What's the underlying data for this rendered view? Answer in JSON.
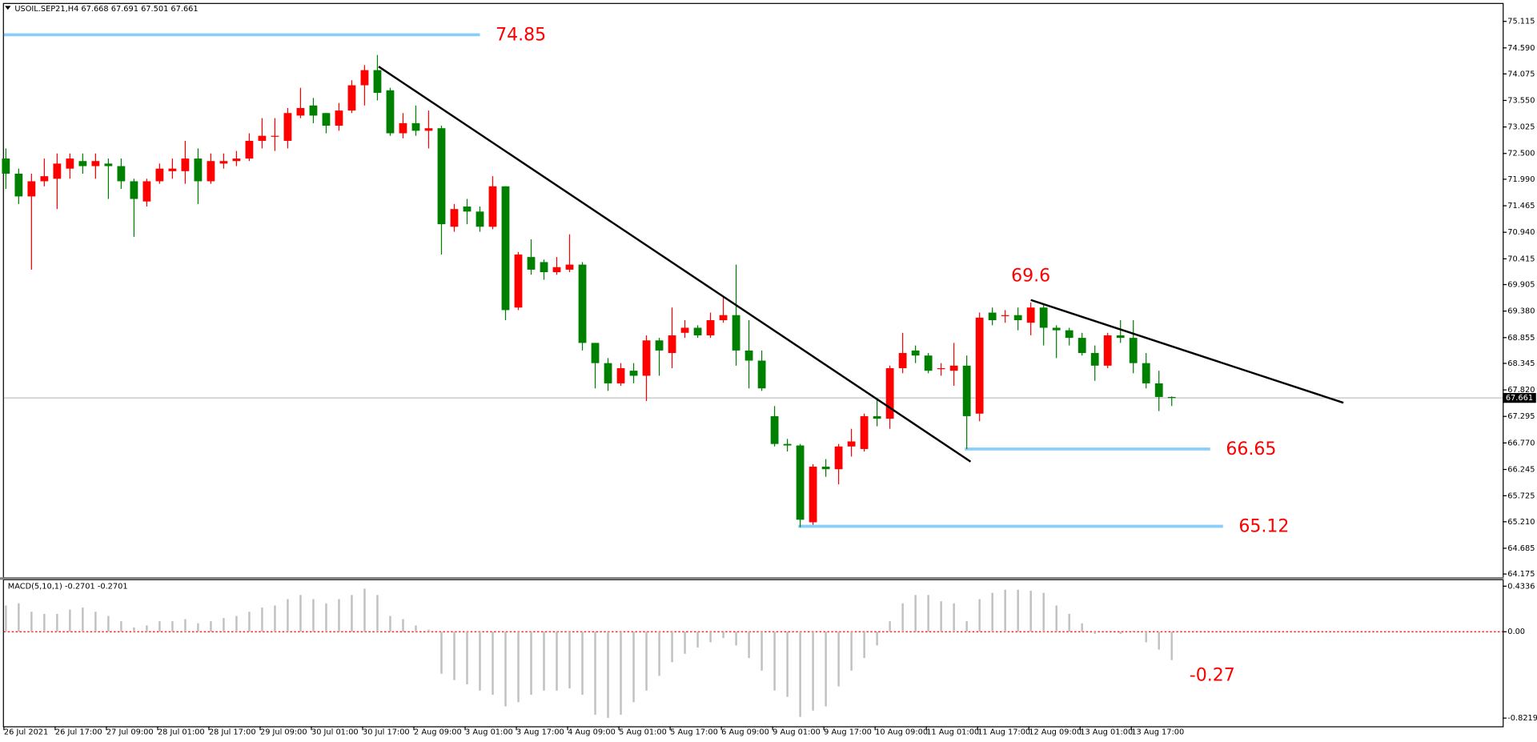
{
  "chart_data": [
    {
      "type": "candlestick",
      "title": "USOIL.SEP21,H4 67.668 67.691 67.501 67.661",
      "categories": [
        "26 Jul 2021",
        null,
        null,
        null,
        "26 Jul 17:00",
        null,
        null,
        null,
        "27 Jul 09:00",
        null,
        null,
        null,
        "28 Jul 01:00",
        null,
        null,
        null,
        "28 Jul 17:00",
        null,
        null,
        null,
        "29 Jul 09:00",
        null,
        null,
        null,
        "30 Jul 01:00",
        null,
        null,
        null,
        "30 Jul 17:00",
        null,
        null,
        null,
        "2 Aug 09:00",
        null,
        null,
        null,
        "3 Aug 01:00",
        null,
        null,
        null,
        "3 Aug 17:00",
        null,
        null,
        null,
        "4 Aug 09:00",
        null,
        null,
        null,
        "5 Aug 01:00",
        null,
        null,
        null,
        "5 Aug 17:00",
        null,
        null,
        null,
        "6 Aug 09:00",
        null,
        null,
        null,
        "9 Aug 01:00",
        null,
        null,
        null,
        "9 Aug 17:00",
        null,
        null,
        null,
        "10 Aug 09:00",
        null,
        null,
        null,
        "11 Aug 01:00",
        null,
        null,
        null,
        "11 Aug 17:00",
        null,
        null,
        null,
        "12 Aug 09:00",
        null,
        null,
        null,
        "13 Aug 01:00",
        null,
        null,
        null,
        "13 Aug 17:00",
        null,
        null,
        null
      ],
      "open": [
        72.4,
        72.1,
        71.65,
        71.95,
        72.0,
        72.2,
        72.35,
        72.25,
        72.3,
        72.25,
        71.95,
        71.55,
        71.95,
        72.15,
        72.15,
        72.4,
        71.95,
        72.3,
        72.35,
        72.4,
        72.75,
        72.85,
        72.75,
        73.25,
        73.45,
        73.3,
        73.05,
        73.35,
        73.85,
        74.15,
        73.75,
        72.9,
        73.1,
        72.95,
        73.0,
        71.05,
        71.45,
        71.35,
        71.05,
        71.85,
        69.45,
        70.45,
        70.35,
        70.15,
        70.2,
        70.3,
        68.75,
        68.35,
        67.95,
        68.2,
        68.1,
        68.8,
        68.55,
        68.95,
        69.05,
        68.9,
        69.2,
        69.3,
        68.6,
        68.4,
        67.3,
        66.75,
        66.72,
        65.2,
        66.3,
        66.25,
        66.7,
        66.65,
        67.3,
        67.25,
        68.25,
        68.6,
        68.5,
        68.25,
        68.2,
        68.3,
        67.35,
        69.35,
        69.3,
        69.3,
        69.15,
        69.45,
        69.05,
        69.0,
        68.85,
        68.55,
        68.3,
        68.9,
        68.85,
        68.35,
        67.95,
        67.68
      ],
      "high": [
        72.6,
        72.2,
        72.1,
        72.4,
        72.5,
        72.5,
        72.5,
        72.5,
        72.4,
        72.4,
        72.0,
        72.0,
        72.3,
        72.4,
        72.75,
        72.6,
        72.5,
        72.5,
        72.55,
        72.9,
        73.2,
        73.2,
        73.4,
        73.8,
        73.6,
        73.3,
        73.5,
        73.95,
        74.25,
        74.45,
        73.8,
        73.3,
        73.45,
        73.35,
        73.05,
        71.5,
        71.6,
        71.45,
        72.05,
        71.85,
        70.55,
        70.8,
        70.4,
        70.45,
        70.9,
        70.35,
        68.75,
        68.45,
        68.35,
        68.35,
        68.9,
        68.85,
        69.45,
        69.2,
        69.1,
        69.35,
        69.65,
        70.3,
        69.2,
        68.6,
        67.5,
        66.85,
        66.75,
        66.35,
        66.45,
        66.75,
        67.05,
        67.35,
        67.65,
        68.3,
        68.95,
        68.7,
        68.55,
        68.35,
        68.75,
        68.5,
        69.35,
        69.45,
        69.4,
        69.45,
        69.55,
        69.5,
        69.1,
        69.05,
        68.95,
        68.7,
        68.95,
        69.2,
        69.2,
        68.55,
        68.2,
        67.691
      ],
      "low": [
        71.8,
        71.5,
        70.2,
        71.85,
        71.4,
        72.0,
        72.1,
        72.0,
        71.6,
        71.8,
        70.85,
        71.45,
        71.9,
        72.0,
        71.9,
        71.5,
        71.9,
        72.2,
        72.25,
        72.35,
        72.6,
        72.55,
        72.6,
        73.2,
        73.1,
        72.9,
        72.95,
        73.3,
        73.45,
        73.55,
        72.85,
        72.8,
        72.85,
        72.6,
        70.5,
        70.95,
        71.1,
        70.95,
        71.0,
        69.2,
        69.4,
        70.1,
        70.0,
        70.1,
        70.15,
        68.6,
        67.85,
        67.8,
        67.9,
        67.95,
        67.6,
        68.1,
        68.25,
        68.85,
        68.85,
        68.85,
        69.15,
        68.3,
        67.85,
        67.8,
        66.7,
        66.6,
        65.1,
        65.15,
        66.1,
        65.95,
        66.5,
        66.6,
        67.1,
        67.05,
        68.15,
        68.35,
        68.15,
        68.1,
        67.9,
        66.65,
        67.2,
        69.1,
        69.15,
        69.0,
        68.9,
        68.7,
        68.45,
        68.7,
        68.5,
        68.0,
        68.25,
        68.75,
        68.15,
        67.85,
        67.4,
        67.501
      ],
      "close": [
        72.1,
        71.65,
        71.95,
        72.05,
        72.3,
        72.4,
        72.25,
        72.35,
        72.25,
        71.95,
        71.6,
        71.95,
        72.2,
        72.2,
        72.4,
        71.95,
        72.35,
        72.35,
        72.4,
        72.75,
        72.85,
        72.85,
        73.3,
        73.4,
        73.25,
        73.05,
        73.35,
        73.85,
        74.15,
        73.7,
        72.9,
        73.1,
        72.95,
        73.0,
        71.1,
        71.4,
        71.35,
        71.05,
        71.85,
        69.4,
        70.5,
        70.2,
        70.15,
        70.25,
        70.3,
        68.75,
        68.35,
        67.95,
        68.25,
        68.1,
        68.8,
        68.6,
        68.9,
        69.05,
        68.9,
        69.2,
        69.3,
        68.6,
        68.4,
        67.85,
        66.75,
        66.72,
        65.25,
        66.3,
        66.25,
        66.7,
        66.8,
        67.3,
        67.25,
        68.25,
        68.55,
        68.5,
        68.2,
        68.25,
        68.3,
        67.3,
        69.25,
        69.2,
        69.3,
        69.2,
        69.45,
        69.05,
        69.0,
        68.85,
        68.55,
        68.3,
        68.9,
        68.85,
        68.35,
        67.95,
        67.68,
        67.661
      ],
      "up_color": "#ff0000",
      "down_color": "#008000",
      "ylim": [
        64.11,
        75.46
      ],
      "yticks": [
        75.115,
        {
          "value": 74.59,
          "label": "74.590"
        },
        74.075,
        {
          "value": 73.55,
          "label": "73.550"
        },
        73.025,
        {
          "value": 72.5,
          "label": "72.500"
        },
        {
          "value": 71.99,
          "label": "71.990"
        },
        71.465,
        {
          "value": 70.94,
          "label": "70.940"
        },
        70.415,
        69.905,
        {
          "value": 69.38,
          "label": "69.380"
        },
        68.855,
        68.345,
        {
          "value": 67.82,
          "label": "67.820"
        },
        67.295,
        {
          "value": 66.77,
          "label": "66.770"
        },
        66.245,
        65.725,
        {
          "value": 65.21,
          "label": "65.210"
        },
        64.685,
        64.175
      ],
      "last_price": 67.661,
      "levels": [
        {
          "value": 74.85,
          "from": 0,
          "to": 37,
          "color": "#87cefa"
        },
        {
          "value": 66.65,
          "from": 75,
          "to": 94,
          "color": "#87cefa"
        },
        {
          "value": 65.12,
          "from": 62,
          "to": 95,
          "color": "#87cefa"
        }
      ],
      "annotations": [
        {
          "value": 69.6,
          "x": 80
        }
      ],
      "annotation_color": "#ff0000",
      "trendlines": [
        {
          "x": [
            29.1,
            75.3
          ],
          "y": [
            74.22,
            66.4
          ],
          "color": "#000000"
        },
        {
          "x": [
            80,
            104.4
          ],
          "y": [
            69.6,
            67.565
          ],
          "color": "#000000"
        }
      ]
    },
    {
      "type": "bar",
      "title": "MACD(5,10,1) -0.2701 -0.2701",
      "values": [
        0.25,
        0.27,
        0.19,
        0.17,
        0.17,
        0.21,
        0.23,
        0.19,
        0.15,
        0.1,
        0.04,
        0.06,
        0.1,
        0.1,
        0.12,
        0.08,
        0.1,
        0.13,
        0.15,
        0.19,
        0.23,
        0.25,
        0.31,
        0.35,
        0.31,
        0.27,
        0.31,
        0.35,
        0.41,
        0.35,
        0.15,
        0.12,
        0.06,
        0.02,
        -0.4,
        -0.46,
        -0.5,
        -0.56,
        -0.6,
        -0.71,
        -0.67,
        -0.6,
        -0.56,
        -0.56,
        -0.54,
        -0.6,
        -0.79,
        -0.82,
        -0.79,
        -0.67,
        -0.56,
        -0.42,
        -0.29,
        -0.21,
        -0.15,
        -0.1,
        -0.06,
        -0.13,
        -0.25,
        -0.37,
        -0.56,
        -0.62,
        -0.81,
        -0.75,
        -0.71,
        -0.52,
        -0.37,
        -0.25,
        -0.13,
        0.1,
        0.27,
        0.35,
        0.35,
        0.29,
        0.27,
        0.1,
        0.31,
        0.37,
        0.4,
        0.4,
        0.39,
        0.37,
        0.25,
        0.17,
        0.08,
        -0.02,
        0.0,
        -0.02,
        0.01,
        -0.1,
        -0.17,
        -0.27
      ],
      "color": "#c0c0c0",
      "ylim": [
        -0.9,
        0.49
      ],
      "yticks": [
        0.4336,
        {
          "value": 0,
          "label": "0.00"
        },
        -0.8219
      ],
      "zero_line_color": "#ff0000",
      "annotations": [
        {
          "value": -0.27,
          "x": 91
        }
      ],
      "annotation_color": "#ff0000"
    }
  ]
}
